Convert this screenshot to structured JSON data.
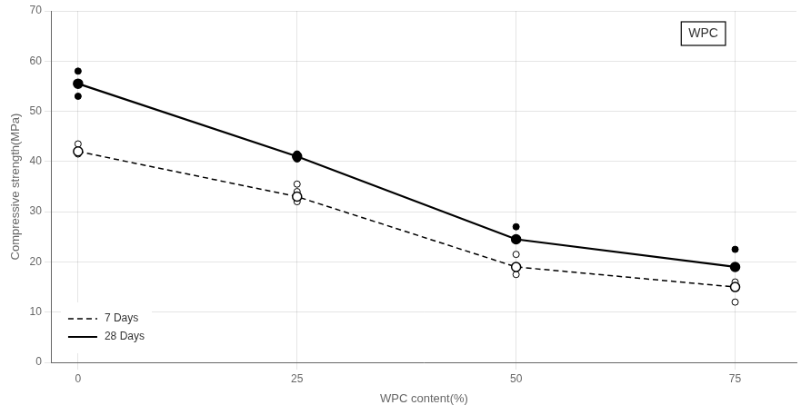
{
  "chart_data": {
    "type": "line",
    "xlabel": "WPC content(%)",
    "ylabel": "Compressive strength(MPa)",
    "xlim": [
      -3,
      82
    ],
    "xticks": [
      0,
      25,
      50,
      75
    ],
    "ylim": [
      0,
      70
    ],
    "yticks": [
      0,
      10,
      20,
      30,
      40,
      50,
      60,
      70
    ],
    "grid": true,
    "legend": "lower left",
    "annotations": [
      "WPC"
    ],
    "series": [
      {
        "name": "28 Days",
        "type": "line",
        "color": "#000000",
        "marker": "circle",
        "line_style": "solid",
        "x": [
          0,
          25,
          50,
          75
        ],
        "values": [
          55.5,
          41.0,
          24.5,
          19.0
        ]
      },
      {
        "name": "7 Days",
        "type": "line",
        "color": "#000000",
        "marker": "open_circle",
        "line_style": "dashed",
        "x": [
          0,
          25,
          50,
          75
        ],
        "values": [
          42.0,
          33.0,
          19.0,
          15.0
        ]
      },
      {
        "type": "scatter",
        "color": "#000000",
        "marker": "circle",
        "x": [
          0,
          0,
          0,
          25,
          25,
          50,
          50,
          75,
          75
        ],
        "values": [
          58.0,
          55.5,
          53.0,
          41.5,
          40.5,
          27.0,
          24.5,
          22.5,
          19.0
        ]
      },
      {
        "type": "scatter",
        "color": "#000000",
        "marker": "open_circle",
        "x": [
          0,
          0,
          25,
          25,
          25,
          50,
          50,
          75,
          75,
          75
        ],
        "values": [
          43.5,
          41.5,
          35.5,
          34.0,
          32.0,
          21.5,
          17.5,
          16.0,
          15.0,
          12.0
        ]
      }
    ]
  }
}
